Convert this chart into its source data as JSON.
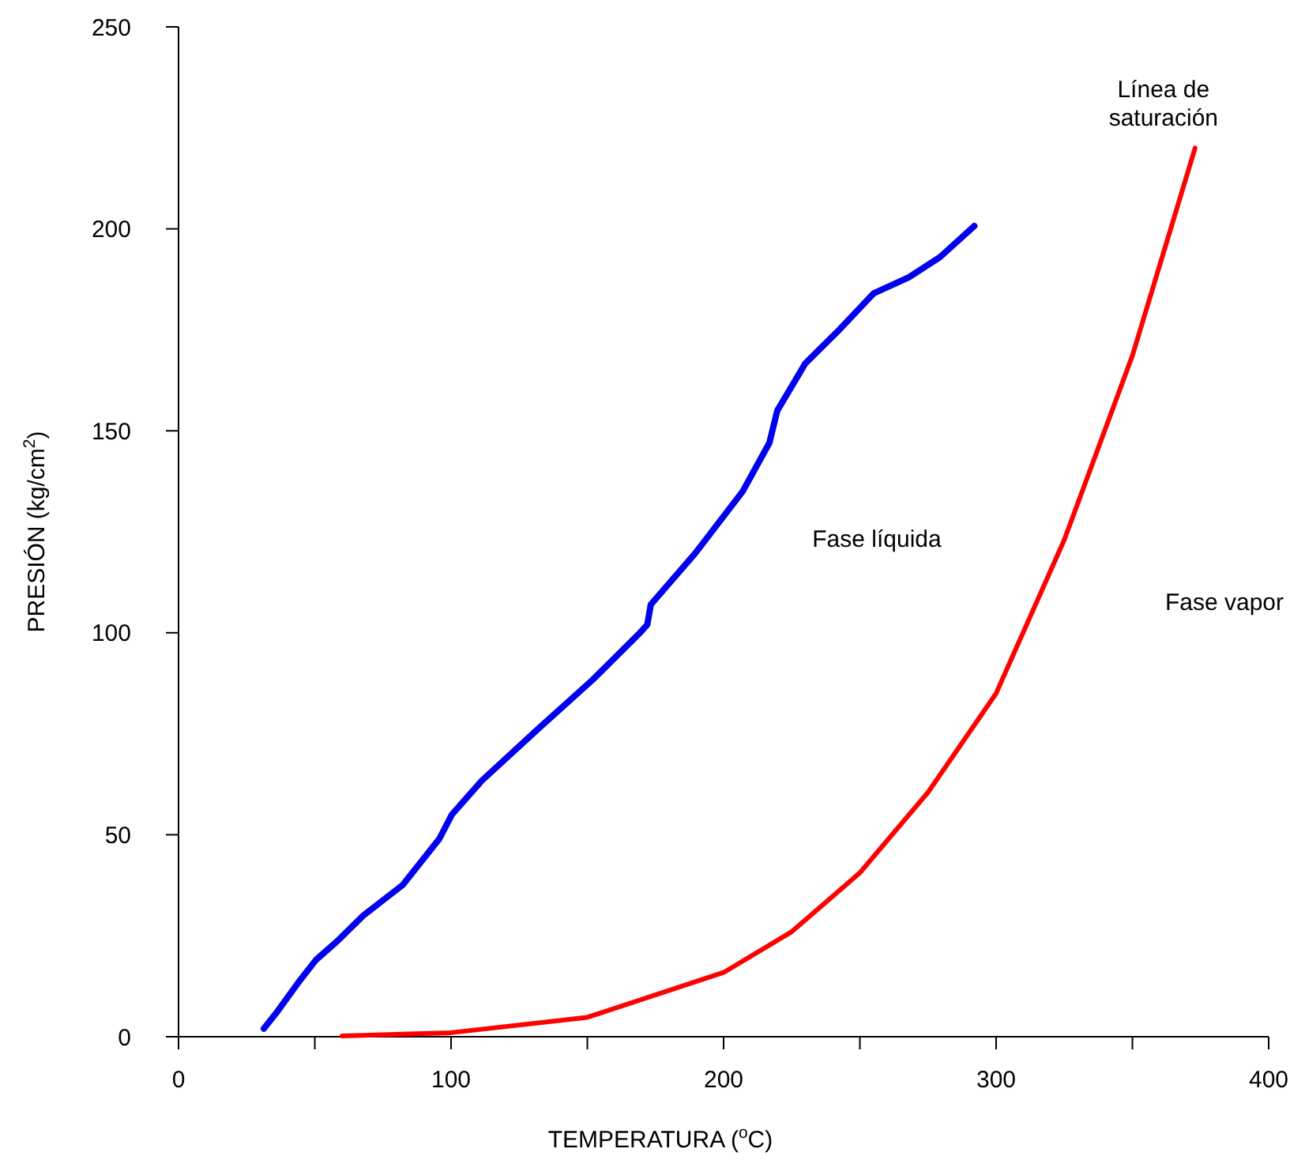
{
  "chart_data": {
    "type": "line",
    "xlabel": "TEMPERATURA ($^{o}$C)",
    "ylabel": "PRESIÓN (kg/cm$^{2}$)",
    "xlim": [
      0,
      400
    ],
    "ylim": [
      0,
      250
    ],
    "xticks": [
      0,
      {
        "value": 50,
        "label": null
      },
      100,
      {
        "value": 150,
        "label": null
      },
      200,
      {
        "value": 250,
        "label": null
      },
      300,
      {
        "value": 350,
        "label": null
      },
      400
    ],
    "yticks": [
      0,
      50,
      100,
      150,
      200,
      250
    ],
    "grid": false,
    "marker": "none",
    "line_style": "solid",
    "series": [
      {
        "color": "#0000ee",
        "x": [
          31.3,
          36,
          44.6,
          50.4,
          58,
          67.8,
          82.3,
          95.7,
          100.3,
          111.3,
          131.6,
          152,
          169.3,
          172,
          173.3,
          189.6,
          207,
          216.8,
          219.7,
          230,
          241.7,
          255,
          268,
          279.4,
          292
        ],
        "values": [
          2,
          6,
          14,
          19,
          23.5,
          30,
          37.6,
          49,
          55,
          63.4,
          76,
          88.4,
          100,
          102,
          107,
          119.7,
          135,
          147,
          155,
          166.7,
          174.5,
          184,
          188,
          193,
          200.7
        ]
      },
      {
        "name": "Línea de saturación",
        "color": "#ff0000",
        "x": [
          60,
          100,
          150,
          200,
          225,
          250,
          275,
          300,
          325,
          350,
          373
        ],
        "values": [
          0.2,
          1,
          4.8,
          15.9,
          26,
          40.6,
          60.5,
          85,
          123,
          168.6,
          220
        ]
      }
    ],
    "annotations": [
      "Fase líquida",
      "Fase vapor"
    ]
  }
}
